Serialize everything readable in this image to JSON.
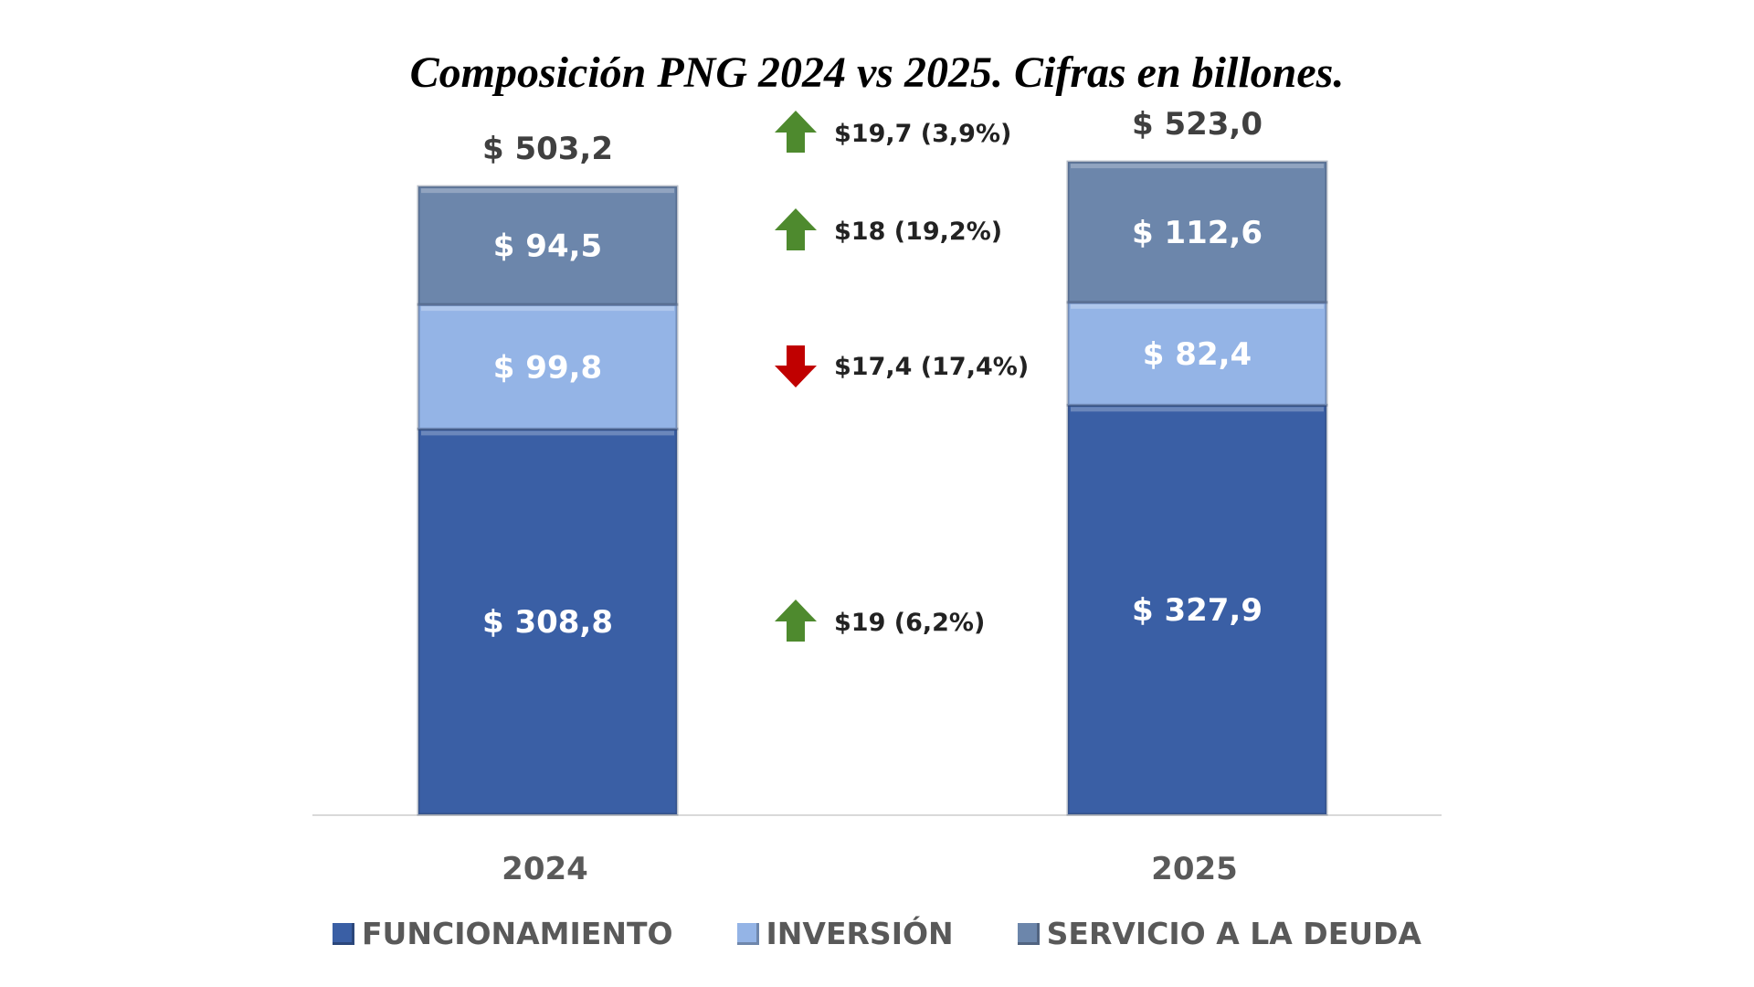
{
  "chart_data": {
    "type": "bar",
    "stacked": true,
    "title": "Composición PNG 2024 vs 2025. Cifras en billones.",
    "categories": [
      "2024",
      "2025"
    ],
    "series": [
      {
        "name": "FUNCIONAMIENTO",
        "values": [
          308.8,
          327.9
        ],
        "labels": [
          "$ 308,8",
          "$ 327,9"
        ],
        "color": "#3a5fa5"
      },
      {
        "name": "INVERSIÓN",
        "values": [
          99.8,
          82.4
        ],
        "labels": [
          "$ 99,8",
          "$ 82,4"
        ],
        "color": "#94b4e6"
      },
      {
        "name": "SERVICIO A LA DEUDA",
        "values": [
          94.5,
          112.6
        ],
        "labels": [
          "$ 94,5",
          "$ 112,6"
        ],
        "color": "#6c86ab"
      }
    ],
    "totals": [
      503.2,
      523.0
    ],
    "total_labels": [
      "$ 503,2",
      "$ 523,0"
    ],
    "changes": [
      {
        "refers_to": "total",
        "direction": "up",
        "label": "$19,7 (3,9%)"
      },
      {
        "refers_to": "SERVICIO A LA DEUDA",
        "direction": "up",
        "label": "$18 (19,2%)"
      },
      {
        "refers_to": "INVERSIÓN",
        "direction": "down",
        "label": "$17,4 (17,4%)"
      },
      {
        "refers_to": "FUNCIONAMIENTO",
        "direction": "up",
        "label": "$19 (6,2%)"
      }
    ],
    "arrow_colors": {
      "up": "#4e8a2e",
      "down": "#c00000"
    },
    "legend_position": "bottom",
    "grid": false
  }
}
